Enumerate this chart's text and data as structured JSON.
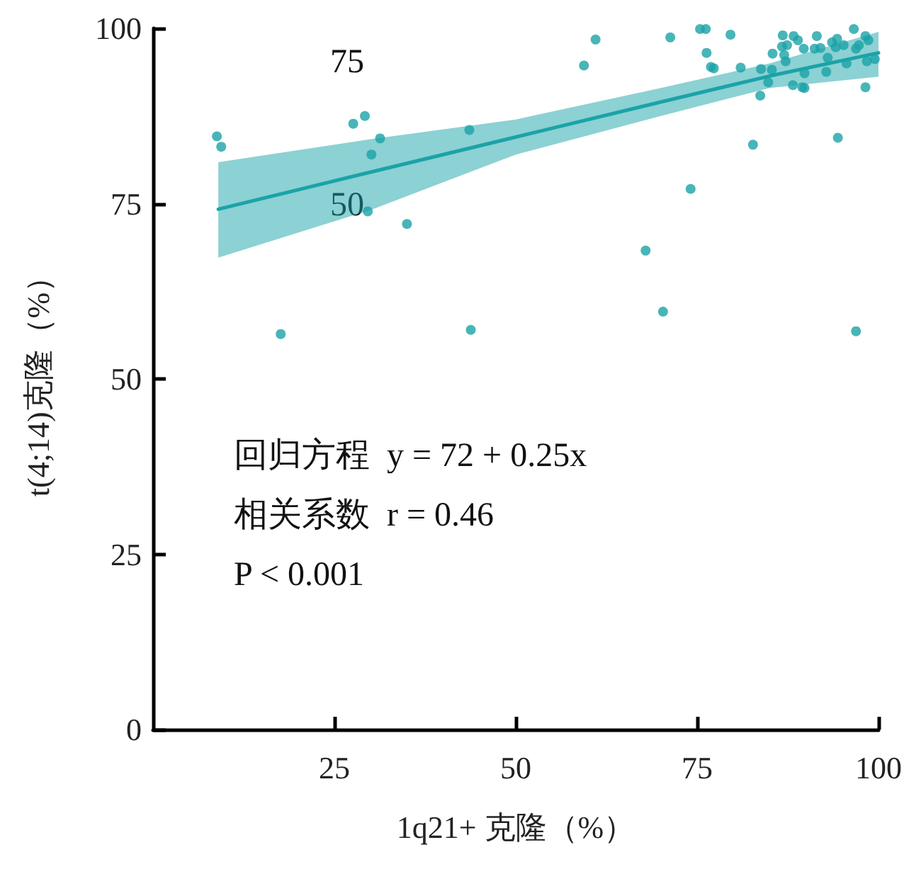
{
  "chart_data": {
    "type": "scatter",
    "xlabel": "1q21+ 克隆（%）",
    "ylabel": "t(4;14)克隆（%）",
    "annotations": [
      "回归方程  y = 72 + 0.25x",
      "相关系数  r = 0.46",
      "P < 0.001",
      "75",
      "50"
    ],
    "xlim": [
      0,
      100
    ],
    "xticks": [
      25,
      50,
      75,
      100
    ],
    "ylim": [
      0,
      100
    ],
    "yticks": [
      0,
      25,
      50,
      75,
      100
    ],
    "grid": false,
    "marker": "circle",
    "series": [
      {
        "color": "#1aa3a8",
        "x": [
          8.8,
          9.4,
          27.6,
          29.2,
          31.3,
          30.1,
          29.6,
          35.0,
          43.6,
          17.6,
          43.8,
          61.0,
          59.4,
          71.3,
          75.4,
          76.2,
          79.6,
          76.3,
          76.9,
          77.3,
          81.0,
          83.7,
          83.8,
          84.8,
          85.3,
          85.4,
          82.7,
          74.1,
          67.9,
          70.3,
          94.4,
          96.9,
          98.2,
          86.8,
          87.4,
          86.7,
          87.0,
          87.2,
          88.3,
          88.9,
          89.7,
          91.5,
          91.2,
          92.0,
          93.0,
          92.8,
          93.6,
          94.3,
          94.1,
          95.2,
          95.6,
          96.6,
          96.9,
          97.3,
          98.2,
          98.6,
          98.4,
          99.5,
          88.2,
          89.5,
          89.8,
          89.8
        ],
        "values": [
          84.6,
          83.1,
          86.4,
          87.5,
          84.3,
          82.0,
          73.9,
          72.1,
          85.5,
          56.4,
          57.0,
          98.4,
          94.7,
          98.7,
          99.9,
          99.9,
          99.1,
          96.5,
          94.5,
          94.3,
          94.4,
          90.4,
          94.2,
          92.3,
          94.1,
          96.4,
          83.4,
          77.1,
          68.3,
          59.6,
          84.4,
          56.8,
          91.6,
          99.0,
          97.6,
          97.4,
          96.2,
          95.3,
          98.9,
          98.3,
          97.1,
          98.9,
          97.1,
          97.2,
          95.8,
          93.8,
          98.0,
          98.5,
          97.3,
          97.6,
          95.0,
          99.9,
          97.1,
          97.6,
          98.9,
          98.3,
          95.3,
          95.6,
          91.9,
          91.6,
          91.5,
          93.6
        ]
      },
      {
        "type": "line",
        "color": "#1aa3a8",
        "line_style": "solid",
        "marker": "none",
        "x": [
          9,
          30,
          50,
          70,
          85,
          100
        ],
        "values": [
          74.2,
          79.5,
          84.5,
          89.5,
          93.2,
          96.5
        ],
        "lower": [
          67.3,
          74.1,
          82.0,
          87.5,
          91.5,
          93.1
        ],
        "upper": [
          80.9,
          84.2,
          87.0,
          91.5,
          95.0,
          99.5
        ]
      }
    ]
  }
}
